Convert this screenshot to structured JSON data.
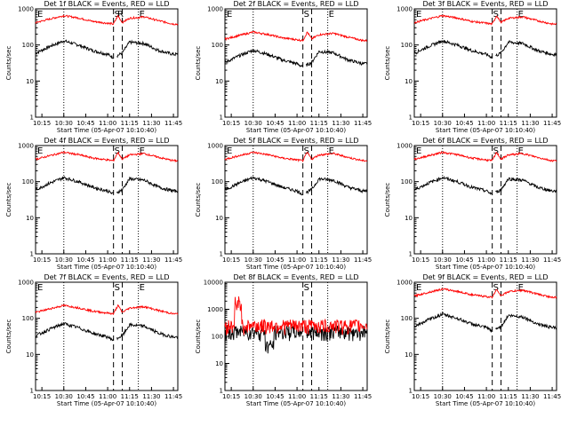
{
  "panels": [
    {
      "title": "Det 1f BLACK = Events, RED = LLD",
      "profile": "normal",
      "e_marks": [
        "E",
        "E"
      ],
      "s_mark": "S",
      "r_mark": "R"
    },
    {
      "title": "Det 2f BLACK = Events, RED = LLD",
      "profile": "low",
      "e_marks": [
        "E",
        "E"
      ],
      "s_mark": "S",
      "r_mark": ""
    },
    {
      "title": "Det 3f BLACK = Events, RED = LLD",
      "profile": "normal",
      "e_marks": [
        "E",
        "E"
      ],
      "s_mark": "S",
      "r_mark": ""
    },
    {
      "title": "Det 4f BLACK = Events, RED = LLD",
      "profile": "normal",
      "e_marks": [
        "E",
        "E"
      ],
      "s_mark": "S",
      "r_mark": ""
    },
    {
      "title": "Det 5f BLACK = Events, RED = LLD",
      "profile": "normal",
      "e_marks": [
        "E",
        "E"
      ],
      "s_mark": "S",
      "r_mark": ""
    },
    {
      "title": "Det 6f BLACK = Events, RED = LLD",
      "profile": "normal",
      "e_marks": [
        "E",
        "E"
      ],
      "s_mark": "S",
      "r_mark": ""
    },
    {
      "title": "Det 7f BLACK = Events, RED = LLD",
      "profile": "low",
      "e_marks": [
        "E",
        "E"
      ],
      "s_mark": "S",
      "r_mark": ""
    },
    {
      "title": "Det 8f BLACK = Events, RED = LLD",
      "profile": "noisy",
      "e_marks": [
        "",
        ""
      ],
      "s_mark": "S",
      "r_mark": ""
    },
    {
      "title": "Det 9f BLACK = Events, RED = LLD",
      "profile": "normal",
      "e_marks": [
        "E",
        "E"
      ],
      "s_mark": "S",
      "r_mark": ""
    }
  ],
  "shared": {
    "ylabel": "Counts/sec",
    "xlabel": "Start Time (05-Apr-07 10:10:40)",
    "x_ticks": [
      "10:15",
      "10:30",
      "10:45",
      "11:00",
      "11:15",
      "11:30",
      "11:45"
    ],
    "y_ticks": [
      "1",
      "10",
      "100",
      "1000"
    ],
    "y_ticks_panel8": [
      "1",
      "10",
      "100",
      "1000",
      "10000"
    ]
  },
  "chart_data": {
    "type": "line",
    "x_unit": "UT time",
    "y_scale": "log",
    "x_range": [
      "10:10:40",
      "11:48"
    ],
    "ylim": [
      1,
      1000
    ],
    "ylim_panel8": [
      1,
      10000
    ],
    "series": [
      {
        "name": "BLACK = Events",
        "color": "#000000"
      },
      {
        "name": "RED = LLD",
        "color": "#ff0000"
      }
    ],
    "vertical_lines_dotted": [
      "10:30",
      "11:21"
    ],
    "vertical_lines_dashed": [
      "11:04",
      "11:10"
    ],
    "black_events_approx": {
      "x": [
        "10:11",
        "10:20",
        "10:30",
        "10:40",
        "10:50",
        "11:00",
        "11:04",
        "11:10",
        "11:15",
        "11:25",
        "11:35",
        "11:45"
      ],
      "y": [
        60,
        90,
        130,
        100,
        70,
        55,
        45,
        60,
        120,
        110,
        70,
        55
      ]
    },
    "red_lld_approx": {
      "x": [
        "10:11",
        "10:20",
        "10:30",
        "10:40",
        "10:50",
        "11:00",
        "11:04",
        "11:07",
        "11:10",
        "11:15",
        "11:25",
        "11:35",
        "11:45"
      ],
      "y": [
        420,
        520,
        650,
        560,
        450,
        400,
        380,
        650,
        420,
        550,
        600,
        470,
        380
      ]
    }
  },
  "colors": {
    "events": "#000000",
    "lld": "#ff0000",
    "background": "#ffffff"
  }
}
